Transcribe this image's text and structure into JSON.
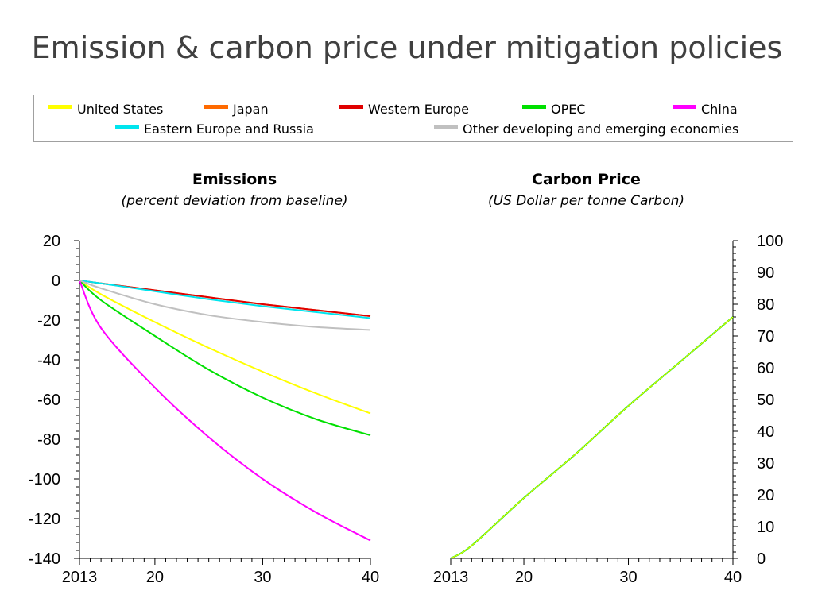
{
  "slide": {
    "title": "Emission & carbon price under mitigation policies"
  },
  "legend": [
    {
      "label": "United States",
      "color": "#ffff00"
    },
    {
      "label": "Japan",
      "color": "#ff6a00"
    },
    {
      "label": "Western Europe",
      "color": "#e00000"
    },
    {
      "label": "OPEC",
      "color": "#00e000"
    },
    {
      "label": "China",
      "color": "#ff00ff"
    },
    {
      "label": "Eastern Europe and Russia",
      "color": "#00e5ee"
    },
    {
      "label": "Other developing and emerging economies",
      "color": "#c0c0c0"
    }
  ],
  "chart_data": [
    {
      "type": "line",
      "title": "Emissions",
      "subtitle": "(percent deviation from baseline)",
      "x": [
        2013,
        2015,
        2020,
        2025,
        2030,
        2035,
        2040
      ],
      "xtick_values": [
        2013,
        2020,
        2030,
        2040
      ],
      "xtick_labels": [
        "2013",
        "20",
        "30",
        "40"
      ],
      "xlim": [
        2013,
        2040
      ],
      "ylim": [
        -140,
        20
      ],
      "yticks": [
        20,
        0,
        -20,
        -40,
        -60,
        -80,
        -100,
        -120,
        -140
      ],
      "yaxis_side": "left",
      "grid": false,
      "series": [
        {
          "name": "United States",
          "color": "#ffff00",
          "values": [
            0,
            -7,
            -21,
            -34,
            -46,
            -57,
            -67
          ]
        },
        {
          "name": "Japan",
          "color": "#ff6a00",
          "values": [
            0,
            -1.5,
            -5,
            -8.5,
            -12,
            -15,
            -18
          ]
        },
        {
          "name": "Western Europe",
          "color": "#e00000",
          "values": [
            0,
            -1.5,
            -5,
            -8.5,
            -12,
            -15,
            -18
          ]
        },
        {
          "name": "OPEC",
          "color": "#00e000",
          "values": [
            0,
            -10,
            -28,
            -45,
            -59,
            -70,
            -78
          ]
        },
        {
          "name": "China",
          "color": "#ff00ff",
          "values": [
            0,
            -24,
            -54,
            -79,
            -100,
            -117,
            -131
          ]
        },
        {
          "name": "Eastern Europe and Russia",
          "color": "#00e5ee",
          "values": [
            0,
            -1.5,
            -5.5,
            -9.5,
            -13,
            -16,
            -19
          ]
        },
        {
          "name": "Other developing and emerging economies",
          "color": "#c0c0c0",
          "values": [
            0,
            -4,
            -12,
            -17.5,
            -21,
            -23.5,
            -25
          ]
        }
      ]
    },
    {
      "type": "line",
      "title": "Carbon Price",
      "subtitle": "(US Dollar per tonne Carbon)",
      "x": [
        2013,
        2015,
        2020,
        2025,
        2030,
        2035,
        2040
      ],
      "xtick_values": [
        2013,
        2020,
        2030,
        2040
      ],
      "xtick_labels": [
        "2013",
        "20",
        "30",
        "40"
      ],
      "xlim": [
        2013,
        2040
      ],
      "ylim": [
        0,
        100
      ],
      "yticks": [
        100,
        90,
        80,
        70,
        60,
        50,
        40,
        30,
        20,
        10,
        0
      ],
      "yaxis_side": "right",
      "grid": false,
      "series": [
        {
          "name": "",
          "color": "#00e000",
          "values": [
            0,
            4,
            19,
            33,
            48,
            62,
            76
          ]
        },
        {
          "name": "",
          "color": "#ffff00",
          "values": [
            0,
            4,
            19,
            33,
            48,
            62,
            76
          ]
        }
      ]
    }
  ]
}
